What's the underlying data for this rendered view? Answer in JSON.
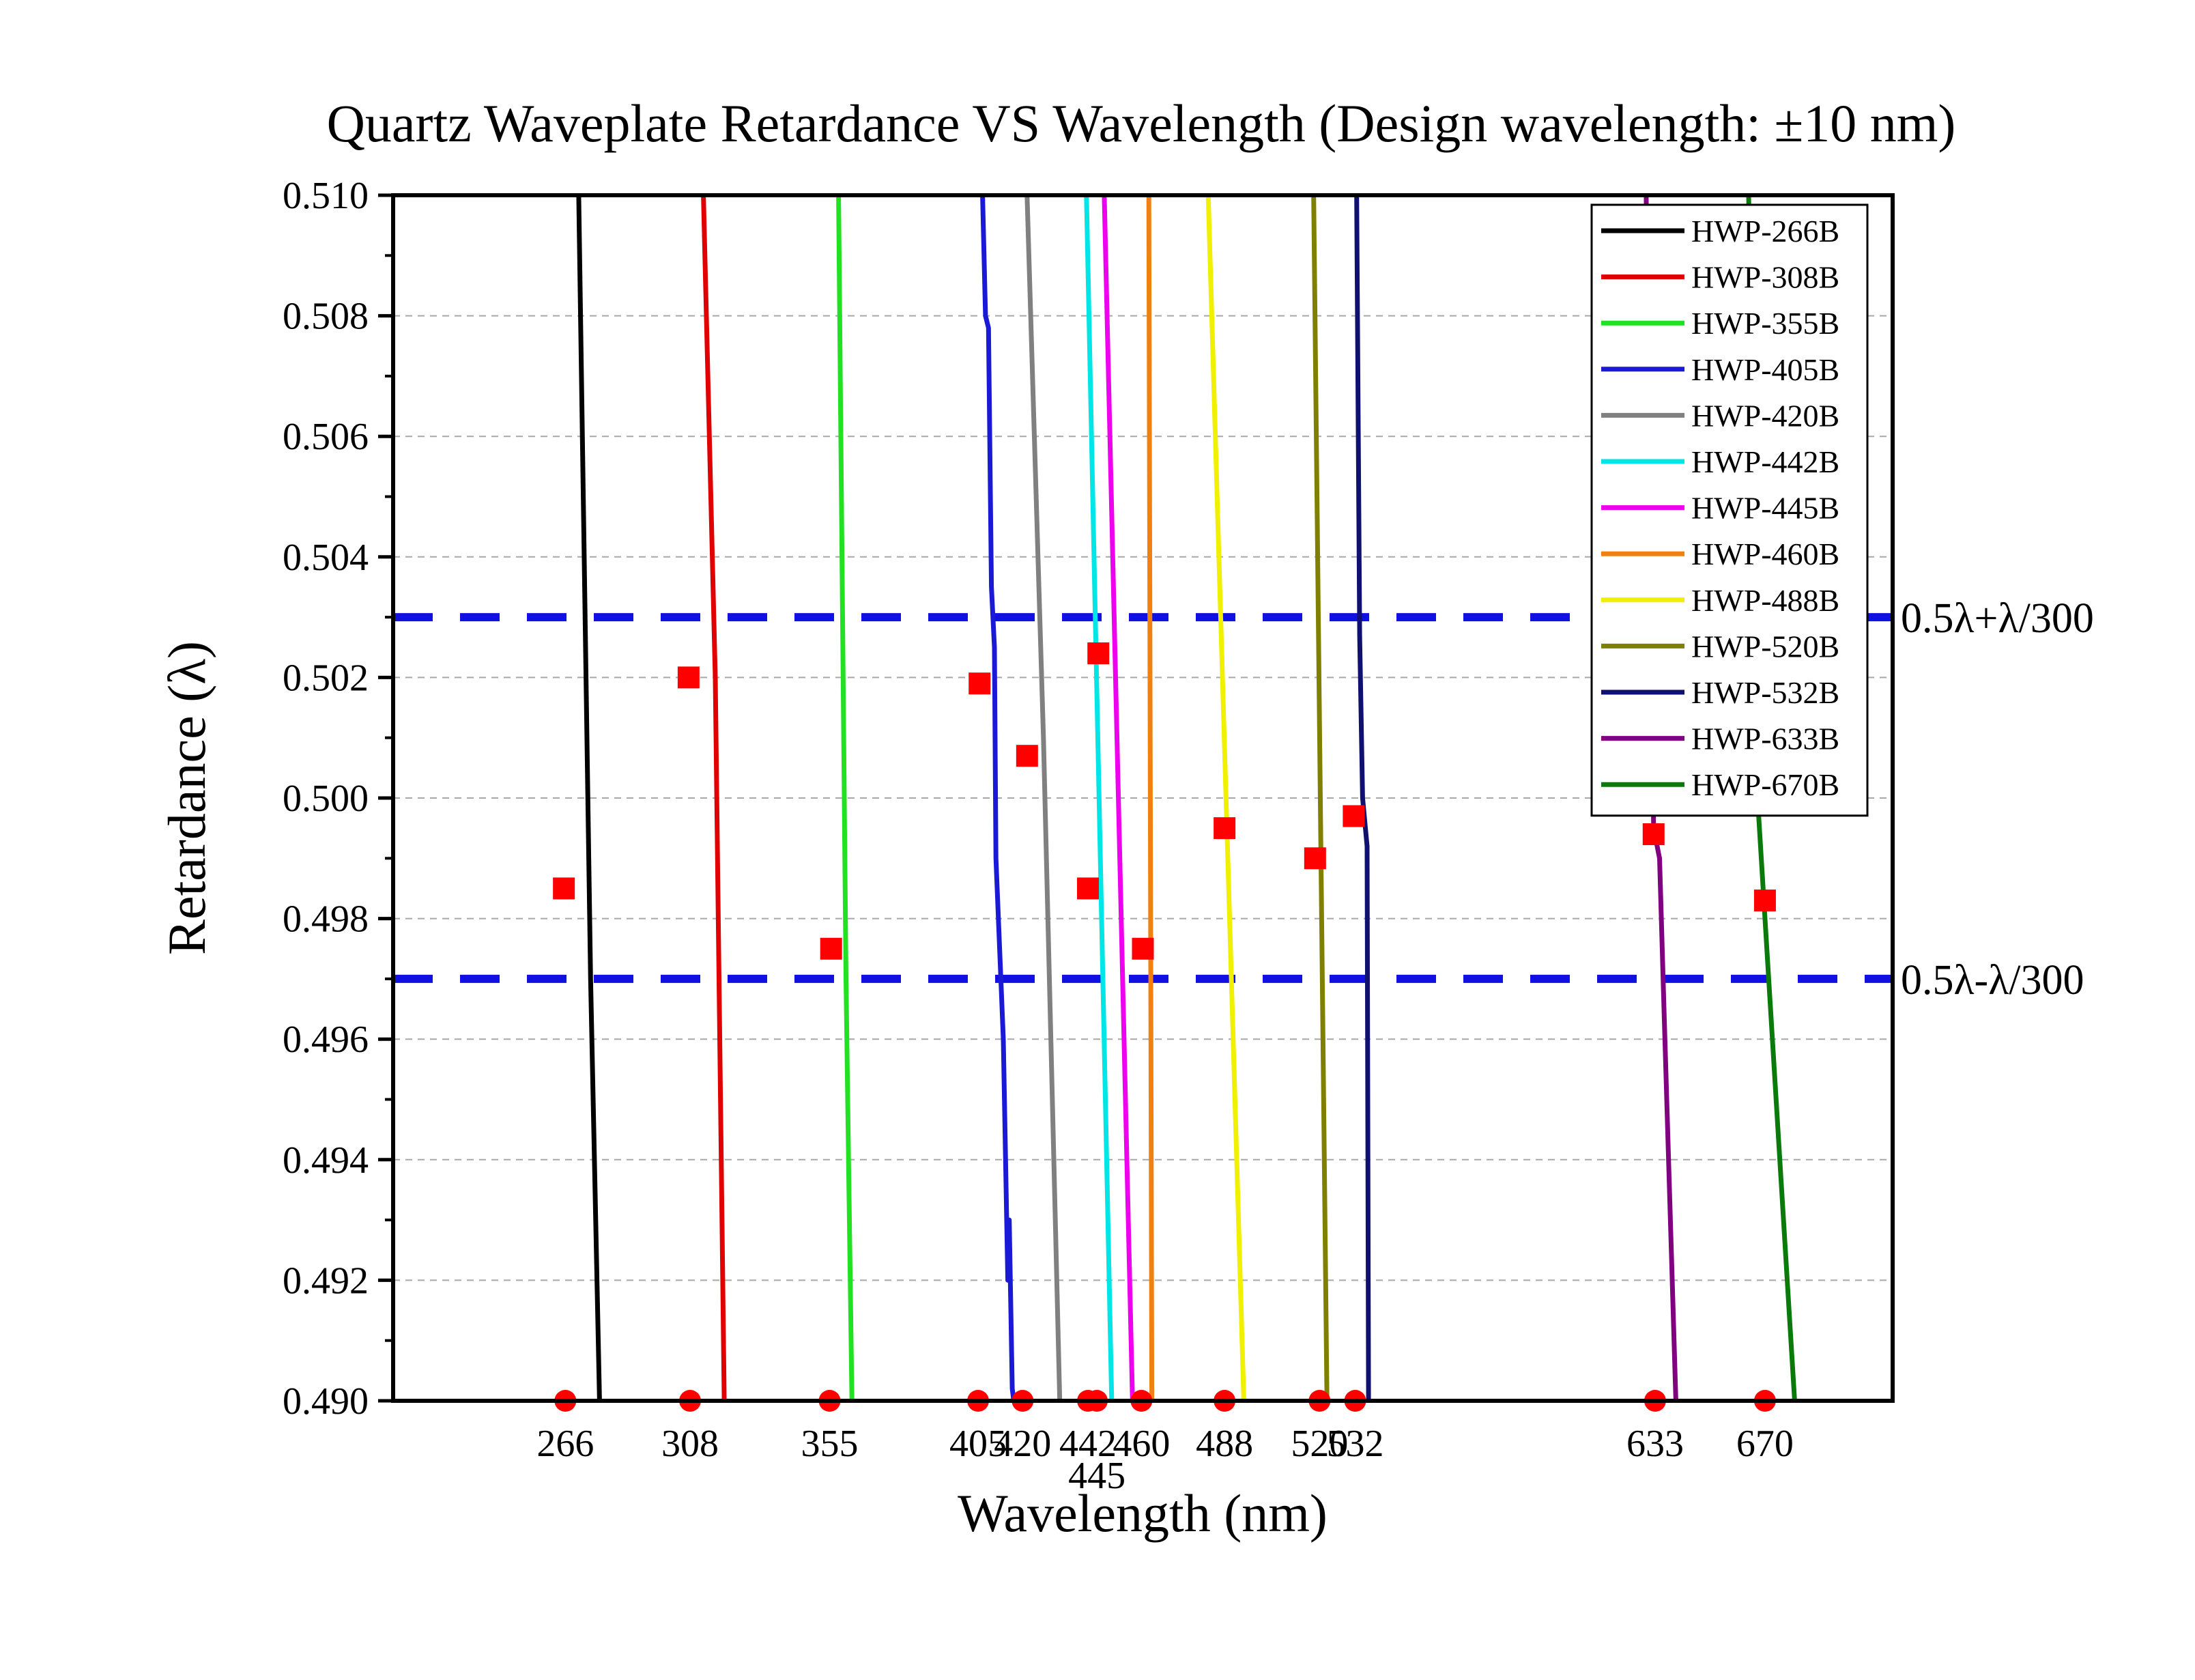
{
  "chart_data": {
    "type": "line",
    "title": "Quartz Waveplate Retardance VS Wavelength (Design wavelength: ±10 nm)",
    "xlabel": "Wavelength (nm)",
    "ylabel": "Retardance (λ)",
    "ylim": [
      0.49,
      0.51
    ],
    "xlim": [
      208,
      713
    ],
    "y_ticks": [
      "0.490",
      "0.492",
      "0.494",
      "0.496",
      "0.498",
      "0.500",
      "0.502",
      "0.504",
      "0.506",
      "0.508",
      "0.510"
    ],
    "x_tick_labels": [
      {
        "value": 266,
        "label": "266",
        "row": 0
      },
      {
        "value": 308,
        "label": "308",
        "row": 0
      },
      {
        "value": 355,
        "label": "355",
        "row": 0
      },
      {
        "value": 405,
        "label": "405",
        "row": 0
      },
      {
        "value": 420,
        "label": "420",
        "row": 0
      },
      {
        "value": 442,
        "label": "442",
        "row": 0
      },
      {
        "value": 445,
        "label": "445",
        "row": 1
      },
      {
        "value": 460,
        "label": "460",
        "row": 0
      },
      {
        "value": 488,
        "label": "488",
        "row": 0
      },
      {
        "value": 520,
        "label": "520",
        "row": 0
      },
      {
        "value": 532,
        "label": "532",
        "row": 0
      },
      {
        "value": 633,
        "label": "633",
        "row": 0
      },
      {
        "value": 670,
        "label": "670",
        "row": 0
      }
    ],
    "grid": "horizontal dashed",
    "legend_position": "top-right",
    "series": [
      {
        "name": "HWP-266B",
        "color": "#000000",
        "points": [
          [
            270.5,
            0.51
          ],
          [
            274.5,
            0.497
          ],
          [
            277.5,
            0.49
          ]
        ]
      },
      {
        "name": "HWP-308B",
        "color": "#e00000",
        "points": [
          [
            312.5,
            0.51
          ],
          [
            316.5,
            0.502
          ],
          [
            319.5,
            0.49
          ]
        ]
      },
      {
        "name": "HWP-355B",
        "color": "#22e022",
        "points": [
          [
            358,
            0.51
          ],
          [
            360.5,
            0.497
          ],
          [
            362.5,
            0.49
          ]
        ]
      },
      {
        "name": "HWP-405B",
        "color": "#1a1ad6",
        "points": [
          [
            406.5,
            0.51
          ],
          [
            407.5,
            0.508
          ],
          [
            408.5,
            0.5078
          ],
          [
            409.5,
            0.5035
          ],
          [
            410.5,
            0.5025
          ],
          [
            411,
            0.499
          ],
          [
            413.5,
            0.496
          ],
          [
            415,
            0.492
          ],
          [
            415.5,
            0.493
          ],
          [
            416.5,
            0.4902
          ],
          [
            417,
            0.49
          ]
        ]
      },
      {
        "name": "HWP-420B",
        "color": "#808080",
        "points": [
          [
            421.5,
            0.51
          ],
          [
            427,
            0.501
          ],
          [
            432.5,
            0.49
          ]
        ]
      },
      {
        "name": "HWP-442B",
        "color": "#00e5e5",
        "points": [
          [
            441.5,
            0.51
          ],
          [
            450,
            0.49
          ]
        ]
      },
      {
        "name": "HWP-445B",
        "color": "#ee00ee",
        "points": [
          [
            447.5,
            0.51
          ],
          [
            457,
            0.49
          ]
        ]
      },
      {
        "name": "HWP-460B",
        "color": "#f08010",
        "points": [
          [
            462.5,
            0.51
          ],
          [
            463.5,
            0.49
          ]
        ]
      },
      {
        "name": "HWP-488B",
        "color": "#f0f000",
        "points": [
          [
            482.5,
            0.51
          ],
          [
            494.5,
            0.49
          ]
        ]
      },
      {
        "name": "HWP-520B",
        "color": "#808000",
        "points": [
          [
            518,
            0.51
          ],
          [
            522.5,
            0.49
          ]
        ]
      },
      {
        "name": "HWP-532B",
        "color": "#101070",
        "points": [
          [
            532.5,
            0.51
          ],
          [
            533.5,
            0.5027
          ],
          [
            534.5,
            0.5
          ],
          [
            536,
            0.4992
          ],
          [
            536.5,
            0.49
          ]
        ]
      },
      {
        "name": "HWP-633B",
        "color": "#800080",
        "points": [
          [
            630,
            0.51
          ],
          [
            632.5,
            0.4995
          ],
          [
            634.5,
            0.499
          ],
          [
            636,
            0.4965
          ],
          [
            640,
            0.49
          ]
        ]
      },
      {
        "name": "HWP-670B",
        "color": "#0a7a0a",
        "points": [
          [
            664.5,
            0.51
          ],
          [
            667.5,
            0.5
          ],
          [
            680,
            0.49
          ]
        ]
      }
    ],
    "red_squares": [
      [
        265.5,
        0.4985
      ],
      [
        307.5,
        0.502
      ],
      [
        355.5,
        0.4975
      ],
      [
        405.5,
        0.5019
      ],
      [
        421.5,
        0.5007
      ],
      [
        445.5,
        0.5024
      ],
      [
        442,
        0.4985
      ],
      [
        460.5,
        0.4975
      ],
      [
        488,
        0.4995
      ],
      [
        518.5,
        0.499
      ],
      [
        531.5,
        0.4997
      ],
      [
        632.5,
        0.4994
      ],
      [
        670,
        0.4983
      ]
    ],
    "red_dots": [
      266,
      308,
      355,
      405,
      420,
      442,
      445,
      460,
      488,
      520,
      532,
      633,
      670
    ],
    "reference_lines": [
      {
        "y": 0.503,
        "label": "0.5λ+λ/300",
        "color": "#1010e0"
      },
      {
        "y": 0.497,
        "label": "0.5λ-λ/300",
        "color": "#1010e0"
      }
    ],
    "marker_color": "#ff0000"
  }
}
